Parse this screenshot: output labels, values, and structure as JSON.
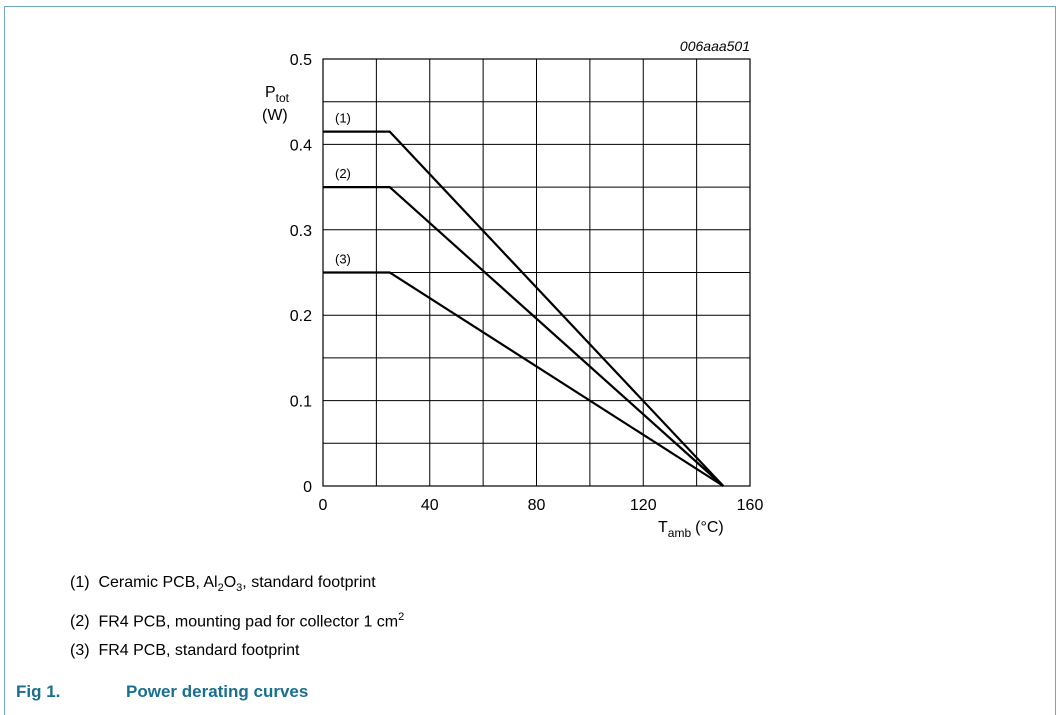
{
  "chart_data": {
    "type": "line",
    "figure_id": "006aaa501",
    "ylabel": {
      "main": "P",
      "sub": "tot",
      "unit": "(W)"
    },
    "xlabel": {
      "main": "T",
      "sub": "amb",
      "unit": "(°C)"
    },
    "xlim": [
      0,
      160
    ],
    "ylim": [
      0,
      0.5
    ],
    "x_ticks": [
      0,
      40,
      80,
      120,
      160
    ],
    "x_tick_labels": [
      "0",
      "40",
      "80",
      "120",
      "160"
    ],
    "y_ticks": [
      0,
      0.1,
      0.2,
      0.3,
      0.4,
      0.5
    ],
    "y_tick_labels": [
      "0",
      "0.1",
      "0.2",
      "0.3",
      "0.4",
      "0.5"
    ],
    "grid": {
      "x_step": 20,
      "y_step": 0.05
    },
    "series": [
      {
        "name": "(1)",
        "x": [
          0,
          25,
          150
        ],
        "y": [
          0.415,
          0.415,
          0
        ]
      },
      {
        "name": "(2)",
        "x": [
          0,
          25,
          150
        ],
        "y": [
          0.35,
          0.35,
          0
        ]
      },
      {
        "name": "(3)",
        "x": [
          0,
          25,
          150
        ],
        "y": [
          0.25,
          0.25,
          0
        ]
      }
    ]
  },
  "legend": [
    {
      "num": "(1)",
      "pre": "Ceramic PCB, Al",
      "sub1": "2",
      "mid": "O",
      "sub2": "3",
      "post": ", standard footprint"
    },
    {
      "num": "(2)",
      "pre": "FR4 PCB, mounting pad for collector 1 cm",
      "sup": "2"
    },
    {
      "num": "(3)",
      "pre": "FR4 PCB, standard footprint"
    }
  ],
  "caption": {
    "number": "Fig 1.",
    "title": "Power derating curves"
  },
  "colors": {
    "caption": "#1a6f8f",
    "frame": "#6fa8bf"
  }
}
